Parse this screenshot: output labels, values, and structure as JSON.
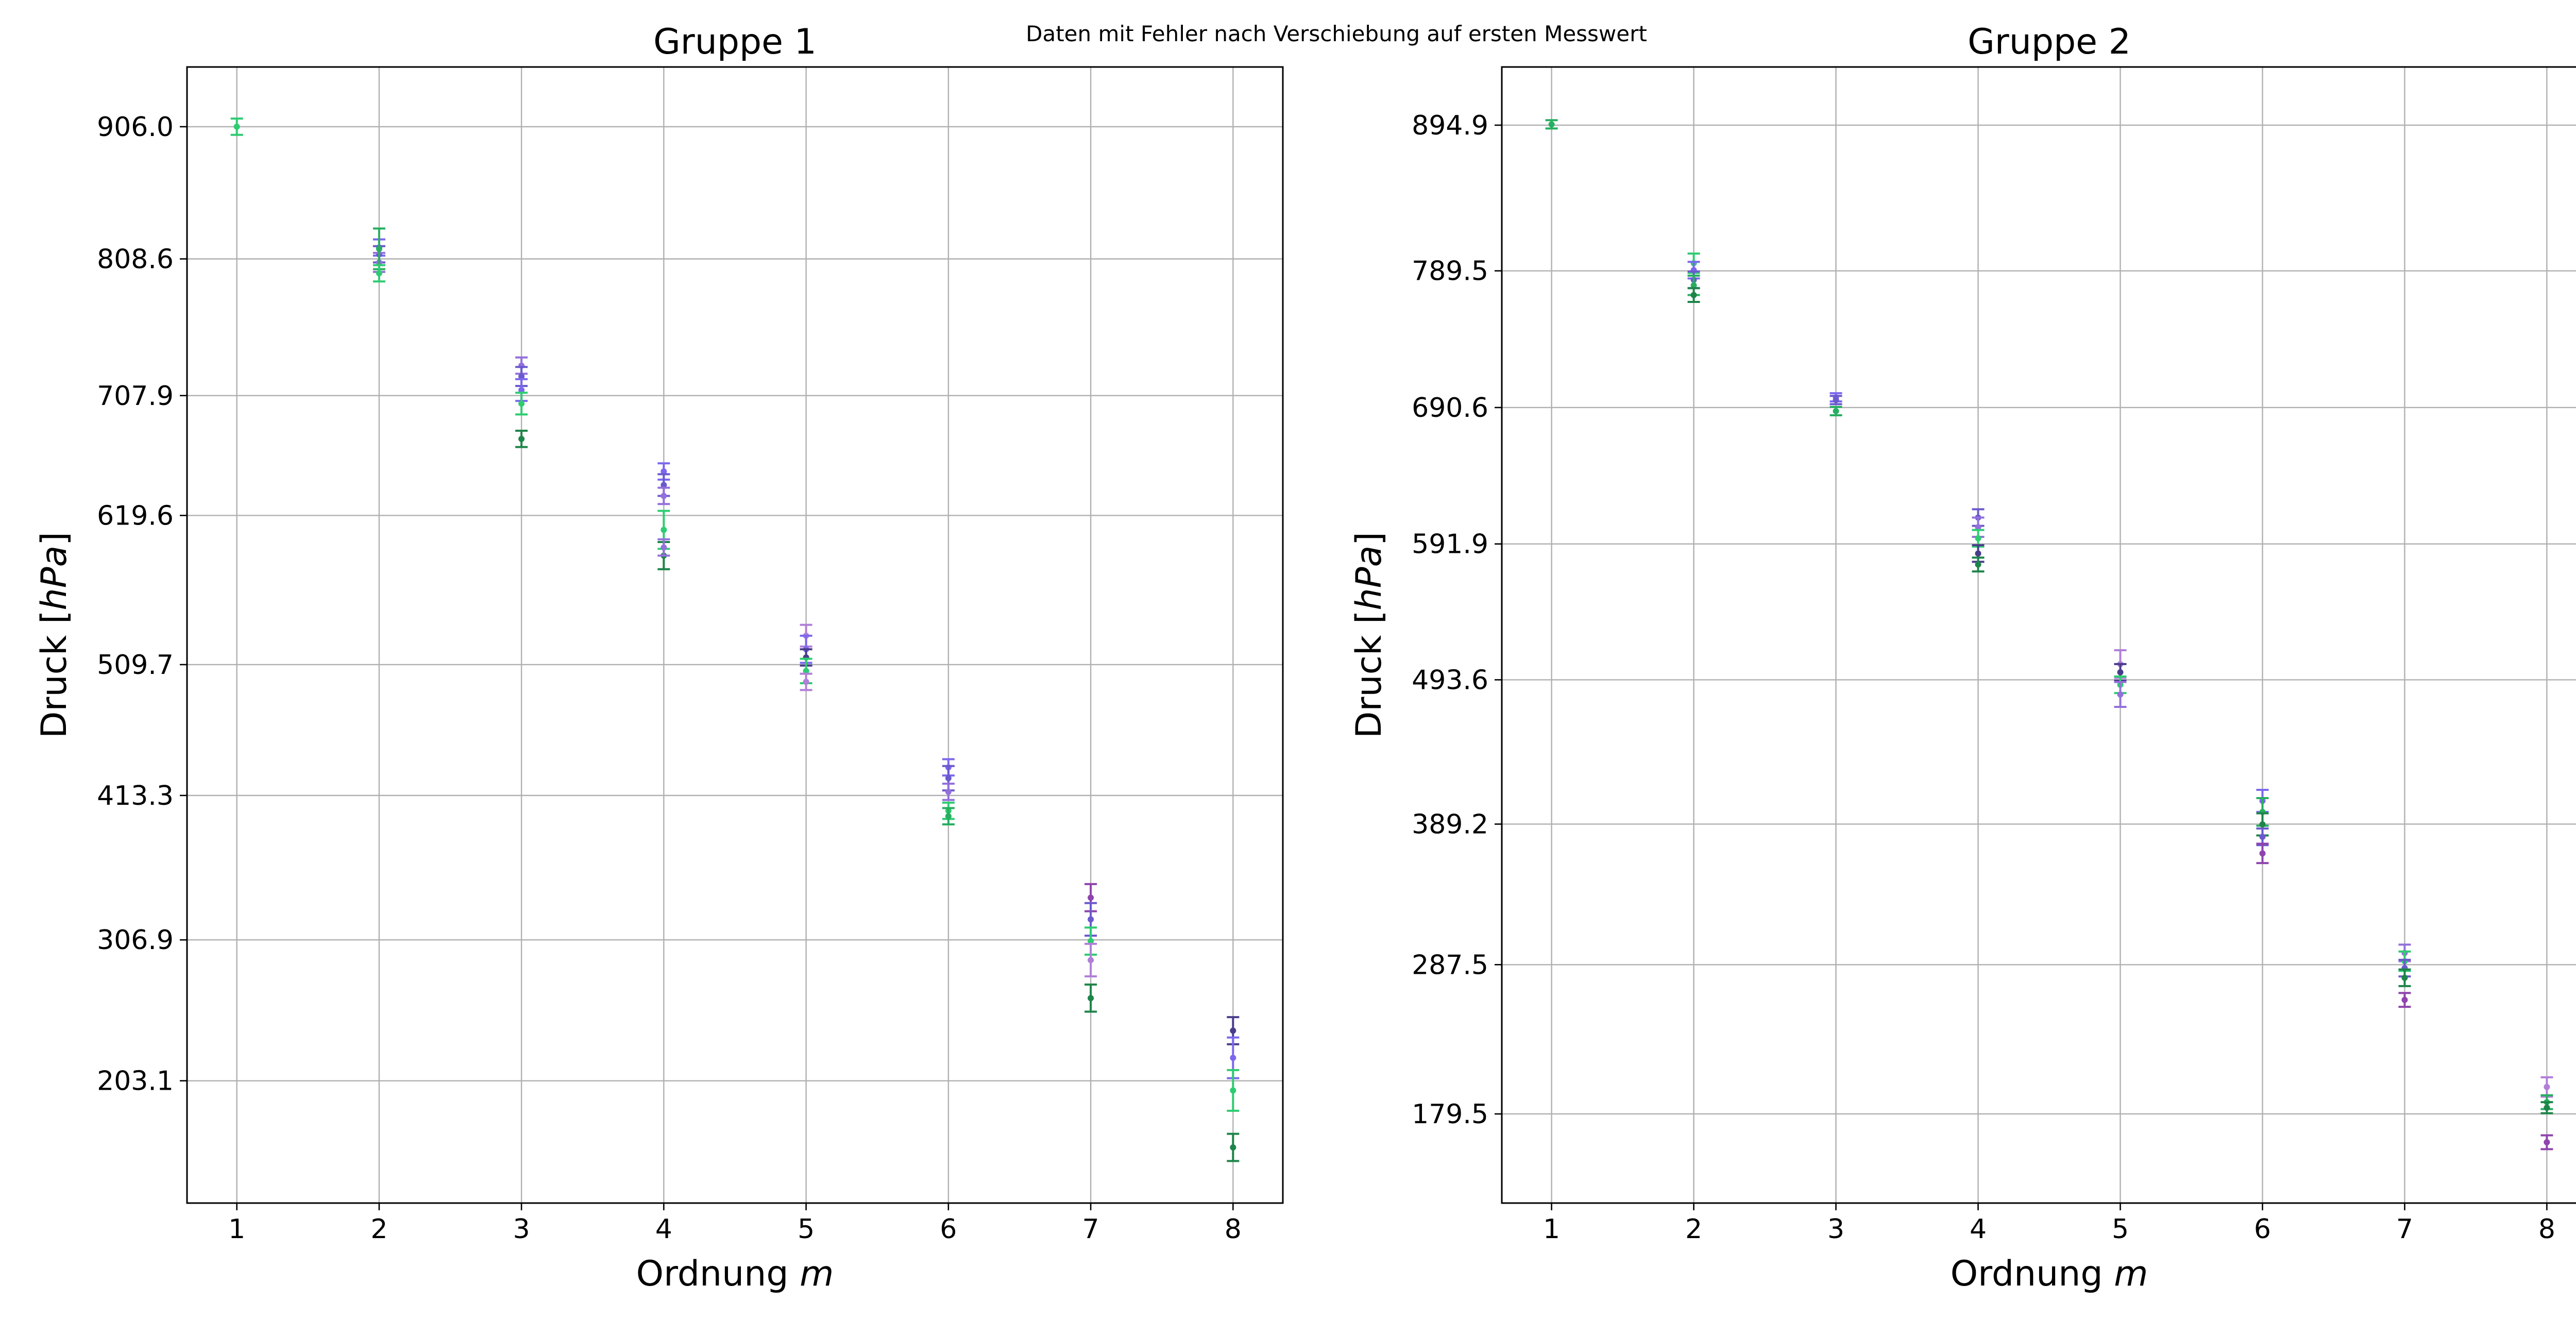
{
  "figure": {
    "suptitle": "Daten mit Fehler nach Verschiebung auf ersten Messwert"
  },
  "colors": {
    "grid": "#b0b0b0",
    "axis": "#000000",
    "series_palette": [
      "#2ecc71",
      "#27ae60",
      "#1e8449",
      "#7b68ee",
      "#6a5acd",
      "#9370db",
      "#483d8b",
      "#8e44ad",
      "#b07fd8"
    ]
  },
  "chart_data": [
    {
      "type": "scatter",
      "variant": "errorbar",
      "title": "Gruppe 1",
      "xlabel": "Ordnung m",
      "ylabel": "Druck [hPa]",
      "xlim": [
        0.65,
        8.35
      ],
      "ylim": [
        113,
        950
      ],
      "x_ticks": [
        1,
        2,
        3,
        4,
        5,
        6,
        7,
        8
      ],
      "y_ticks": [
        906.0,
        808.6,
        707.9,
        619.6,
        509.7,
        413.3,
        306.9,
        203.1
      ],
      "y_tick_labels": [
        "906.0",
        "808.6",
        "707.9",
        "619.6",
        "509.7",
        "413.3",
        "306.9",
        "203.1"
      ],
      "grid": true,
      "points": [
        {
          "x": 1,
          "y": 906.0,
          "err": 6,
          "color": "#2ecc71"
        },
        {
          "x": 2,
          "y": 817,
          "err": 6,
          "color": "#7b68ee"
        },
        {
          "x": 2,
          "y": 812,
          "err": 6,
          "color": "#6a5acd"
        },
        {
          "x": 2,
          "y": 806,
          "err": 7,
          "color": "#9370db"
        },
        {
          "x": 2,
          "y": 816,
          "err": 15,
          "color": "#27ae60"
        },
        {
          "x": 2,
          "y": 798,
          "err": 6,
          "color": "#2ecc71"
        },
        {
          "x": 3,
          "y": 730,
          "err": 6,
          "color": "#9370db"
        },
        {
          "x": 3,
          "y": 722,
          "err": 7,
          "color": "#6a5acd"
        },
        {
          "x": 3,
          "y": 712,
          "err": 8,
          "color": "#7b68ee"
        },
        {
          "x": 3,
          "y": 702,
          "err": 8,
          "color": "#2ecc71"
        },
        {
          "x": 3,
          "y": 676,
          "err": 6,
          "color": "#1e8449"
        },
        {
          "x": 4,
          "y": 652,
          "err": 6,
          "color": "#7b68ee"
        },
        {
          "x": 4,
          "y": 642,
          "err": 8,
          "color": "#6a5acd"
        },
        {
          "x": 4,
          "y": 634,
          "err": 6,
          "color": "#9370db"
        },
        {
          "x": 4,
          "y": 609,
          "err": 14,
          "color": "#2ecc71"
        },
        {
          "x": 4,
          "y": 590,
          "err": 10,
          "color": "#1e8449"
        },
        {
          "x": 4,
          "y": 596,
          "err": 6,
          "color": "#9370db"
        },
        {
          "x": 5,
          "y": 531,
          "err": 8,
          "color": "#b07fd8"
        },
        {
          "x": 5,
          "y": 521,
          "err": 10,
          "color": "#7b68ee"
        },
        {
          "x": 5,
          "y": 515,
          "err": 6,
          "color": "#483d8b"
        },
        {
          "x": 5,
          "y": 505,
          "err": 9,
          "color": "#2ecc71"
        },
        {
          "x": 5,
          "y": 497,
          "err": 6,
          "color": "#b07fd8"
        },
        {
          "x": 6,
          "y": 434,
          "err": 6,
          "color": "#7b68ee"
        },
        {
          "x": 6,
          "y": 426,
          "err": 9,
          "color": "#6a5acd"
        },
        {
          "x": 6,
          "y": 416,
          "err": 6,
          "color": "#9370db"
        },
        {
          "x": 6,
          "y": 402,
          "err": 6,
          "color": "#2ecc71"
        },
        {
          "x": 6,
          "y": 398,
          "err": 6,
          "color": "#27ae60"
        },
        {
          "x": 7,
          "y": 338,
          "err": 10,
          "color": "#8e44ad"
        },
        {
          "x": 7,
          "y": 322,
          "err": 12,
          "color": "#6a5acd"
        },
        {
          "x": 7,
          "y": 306,
          "err": 10,
          "color": "#2ecc71"
        },
        {
          "x": 7,
          "y": 292,
          "err": 12,
          "color": "#b07fd8"
        },
        {
          "x": 7,
          "y": 264,
          "err": 10,
          "color": "#1e8449"
        },
        {
          "x": 8,
          "y": 240,
          "err": 10,
          "color": "#483d8b"
        },
        {
          "x": 8,
          "y": 220,
          "err": 15,
          "color": "#7b68ee"
        },
        {
          "x": 8,
          "y": 196,
          "err": 15,
          "color": "#2ecc71"
        },
        {
          "x": 8,
          "y": 154,
          "err": 10,
          "color": "#1e8449"
        }
      ]
    },
    {
      "type": "scatter",
      "variant": "errorbar",
      "title": "Gruppe 2",
      "xlabel": "Ordnung m",
      "ylabel": "Druck [hPa]",
      "xlim": [
        0.65,
        8.35
      ],
      "ylim": [
        115,
        937
      ],
      "x_ticks": [
        1,
        2,
        3,
        4,
        5,
        6,
        7,
        8
      ],
      "y_ticks": [
        894.9,
        789.5,
        690.6,
        591.9,
        493.6,
        389.2,
        287.5,
        179.5
      ],
      "y_tick_labels": [
        "894.9",
        "789.5",
        "690.6",
        "591.9",
        "493.6",
        "389.2",
        "287.5",
        "179.5"
      ],
      "grid": true,
      "points": [
        {
          "x": 1,
          "y": 895.5,
          "err": 3,
          "color": "#27ae60"
        },
        {
          "x": 2,
          "y": 795,
          "err": 7,
          "color": "#2ecc71"
        },
        {
          "x": 2,
          "y": 790,
          "err": 6,
          "color": "#7b68ee"
        },
        {
          "x": 2,
          "y": 783,
          "err": 6,
          "color": "#6a5acd"
        },
        {
          "x": 2,
          "y": 779,
          "err": 7,
          "color": "#27ae60"
        },
        {
          "x": 2,
          "y": 772,
          "err": 5,
          "color": "#1e8449"
        },
        {
          "x": 3,
          "y": 698,
          "err": 3,
          "color": "#7b68ee"
        },
        {
          "x": 3,
          "y": 696,
          "err": 3,
          "color": "#6a5acd"
        },
        {
          "x": 3,
          "y": 688,
          "err": 3,
          "color": "#27ae60"
        },
        {
          "x": 4,
          "y": 611,
          "err": 6,
          "color": "#6a5acd"
        },
        {
          "x": 4,
          "y": 604,
          "err": 7,
          "color": "#9370db"
        },
        {
          "x": 4,
          "y": 596,
          "err": 6,
          "color": "#2ecc71"
        },
        {
          "x": 4,
          "y": 585,
          "err": 6,
          "color": "#483d8b"
        },
        {
          "x": 4,
          "y": 577,
          "err": 5,
          "color": "#1e8449"
        },
        {
          "x": 5,
          "y": 505,
          "err": 10,
          "color": "#b07fd8"
        },
        {
          "x": 5,
          "y": 499,
          "err": 6,
          "color": "#483d8b"
        },
        {
          "x": 5,
          "y": 490,
          "err": 6,
          "color": "#2ecc71"
        },
        {
          "x": 5,
          "y": 483,
          "err": 9,
          "color": "#9370db"
        },
        {
          "x": 6,
          "y": 406,
          "err": 8,
          "color": "#7b68ee"
        },
        {
          "x": 6,
          "y": 398,
          "err": 10,
          "color": "#27ae60"
        },
        {
          "x": 6,
          "y": 389,
          "err": 8,
          "color": "#1e8449"
        },
        {
          "x": 6,
          "y": 380,
          "err": 6,
          "color": "#6a5acd"
        },
        {
          "x": 6,
          "y": 368,
          "err": 7,
          "color": "#8e44ad"
        },
        {
          "x": 7,
          "y": 296,
          "err": 6,
          "color": "#9370db"
        },
        {
          "x": 7,
          "y": 290,
          "err": 7,
          "color": "#2ecc71"
        },
        {
          "x": 7,
          "y": 285,
          "err": 6,
          "color": "#6a5acd"
        },
        {
          "x": 7,
          "y": 278,
          "err": 6,
          "color": "#1e8449"
        },
        {
          "x": 7,
          "y": 262,
          "err": 5,
          "color": "#8e44ad"
        },
        {
          "x": 8,
          "y": 199,
          "err": 7,
          "color": "#b07fd8"
        },
        {
          "x": 8,
          "y": 188,
          "err": 5,
          "color": "#27ae60"
        },
        {
          "x": 8,
          "y": 184,
          "err": 4,
          "color": "#1e8449"
        },
        {
          "x": 8,
          "y": 159,
          "err": 5,
          "color": "#8e44ad"
        }
      ]
    }
  ]
}
